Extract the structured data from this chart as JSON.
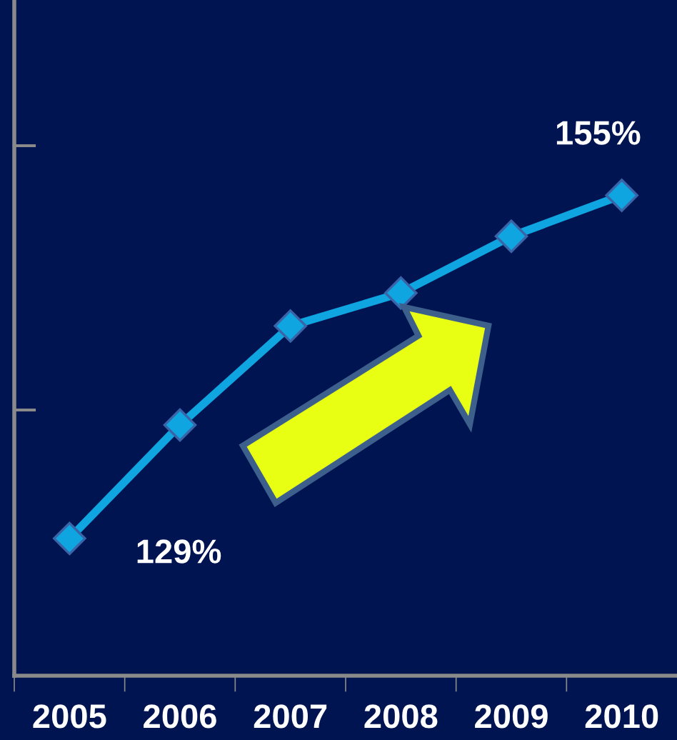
{
  "chart_data": {
    "type": "line",
    "categories": [
      "2005",
      "2006",
      "2007",
      "2008",
      "2009",
      "2010"
    ],
    "series": [
      {
        "color": "#0ea5e0",
        "values": [
          129,
          137.6,
          145.1,
          147.6,
          151.9,
          155
        ],
        "value_labels": [
          "129%",
          null,
          null,
          null,
          null,
          "155%"
        ]
      }
    ],
    "ylim": [
      118.6,
      169.8
    ],
    "marker": "diamond",
    "line_style": "solid",
    "grid": false,
    "legend": false,
    "tick_labels": "x"
  }
}
